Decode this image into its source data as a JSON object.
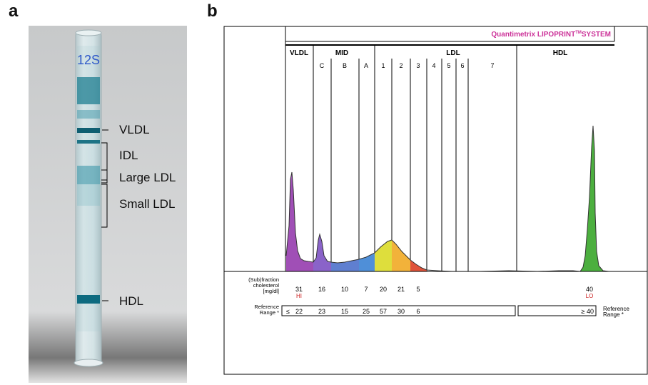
{
  "panel_a": {
    "letter": "a",
    "tube_marking": "12S",
    "band_labels": {
      "vldl": "VLDL",
      "idl": "IDL",
      "large_ldl": "Large LDL",
      "small_ldl": "Small LDL",
      "hdl": "HDL"
    }
  },
  "panel_b": {
    "letter": "b",
    "system_title": "Quantimetrix LIPOPRINT",
    "system_title_tm": "TM",
    "system_title_suffix": "SYSTEM",
    "groups": {
      "vldl": "VLDL",
      "mid": "MID",
      "ldl": "LDL",
      "hdl": "HDL"
    },
    "subfractions": [
      "C",
      "B",
      "A",
      "1",
      "2",
      "3",
      "4",
      "5",
      "6",
      "7"
    ],
    "row_label_line1": "(Sub)fraction",
    "row_label_line2": "cholesterol",
    "row_label_line3": "[mg/dl]",
    "values": [
      "31",
      "16",
      "10",
      "7",
      "20",
      "21",
      "5",
      "40"
    ],
    "flags": {
      "vldl": "HI",
      "hdl": "LO"
    },
    "reference_label_line1": "Reference",
    "reference_label_line2": "Range *",
    "reference_le_symbol": "≤",
    "reference_values": [
      "22",
      "23",
      "15",
      "25",
      "57",
      "30",
      "6"
    ],
    "reference_hdl": "≥ 40",
    "colors": {
      "vldl": "#a04fb6",
      "mid_c": "#8a63c9",
      "mid_b": "#5f7fd0",
      "mid_a": "#4f8fd8",
      "ldl1": "#dede3c",
      "ldl2": "#f2b23a",
      "ldl3": "#e0533a",
      "hdl": "#4caf3f",
      "title": "#cc3399",
      "flag": "#cc2222"
    }
  }
}
